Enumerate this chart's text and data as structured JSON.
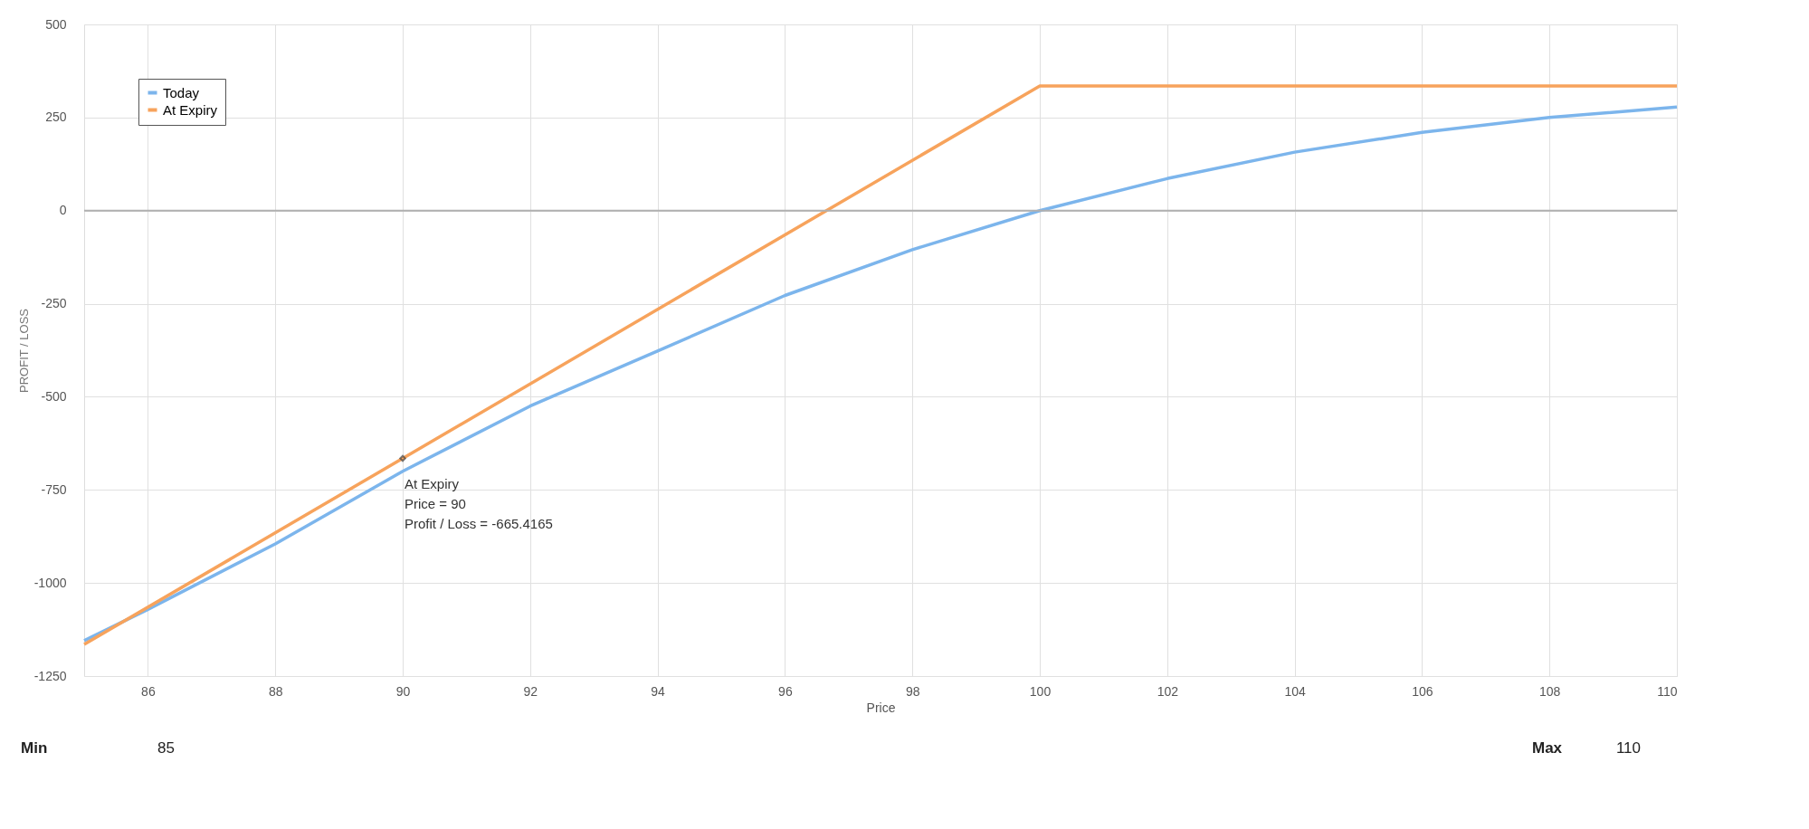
{
  "chart_data": {
    "type": "line",
    "xlabel": "Price",
    "ylabel": "PROFIT / LOSS",
    "xlim": [
      85,
      110
    ],
    "xticks": [
      86,
      88,
      90,
      92,
      94,
      96,
      98,
      100,
      102,
      104,
      106,
      108,
      110
    ],
    "ylim": [
      -1250,
      500
    ],
    "yticks": [
      -1250,
      -1000,
      -750,
      -500,
      -250,
      0,
      250,
      500
    ],
    "grid": true,
    "legend": "top left",
    "marker": "none",
    "line_style": "solid",
    "series": [
      {
        "name": "Today",
        "color": "#7cb5ec",
        "x": [
          85,
          86,
          88,
          90,
          92,
          94,
          96,
          98,
          100,
          102,
          104,
          106,
          108,
          110
        ],
        "values": [
          -1155,
          -1071,
          -895,
          -700,
          -525,
          -377,
          -228,
          -105,
          0,
          86,
          157,
          210,
          250,
          278
        ]
      },
      {
        "name": "At Expiry",
        "color": "#f7a35c",
        "x": [
          85,
          90,
          100,
          110
        ],
        "values": [
          -1165,
          -665.4165,
          335,
          335
        ]
      }
    ],
    "ref_lines": [
      {
        "axis": "y",
        "value": 0,
        "color": "#b0b0b0"
      }
    ],
    "annotations": [
      {
        "text": "At Expiry\nPrice = 90\nProfit / Loss = -665.4165",
        "x": 90,
        "y": -665.4165
      },
      "Min",
      "85",
      "Max",
      "110"
    ]
  }
}
